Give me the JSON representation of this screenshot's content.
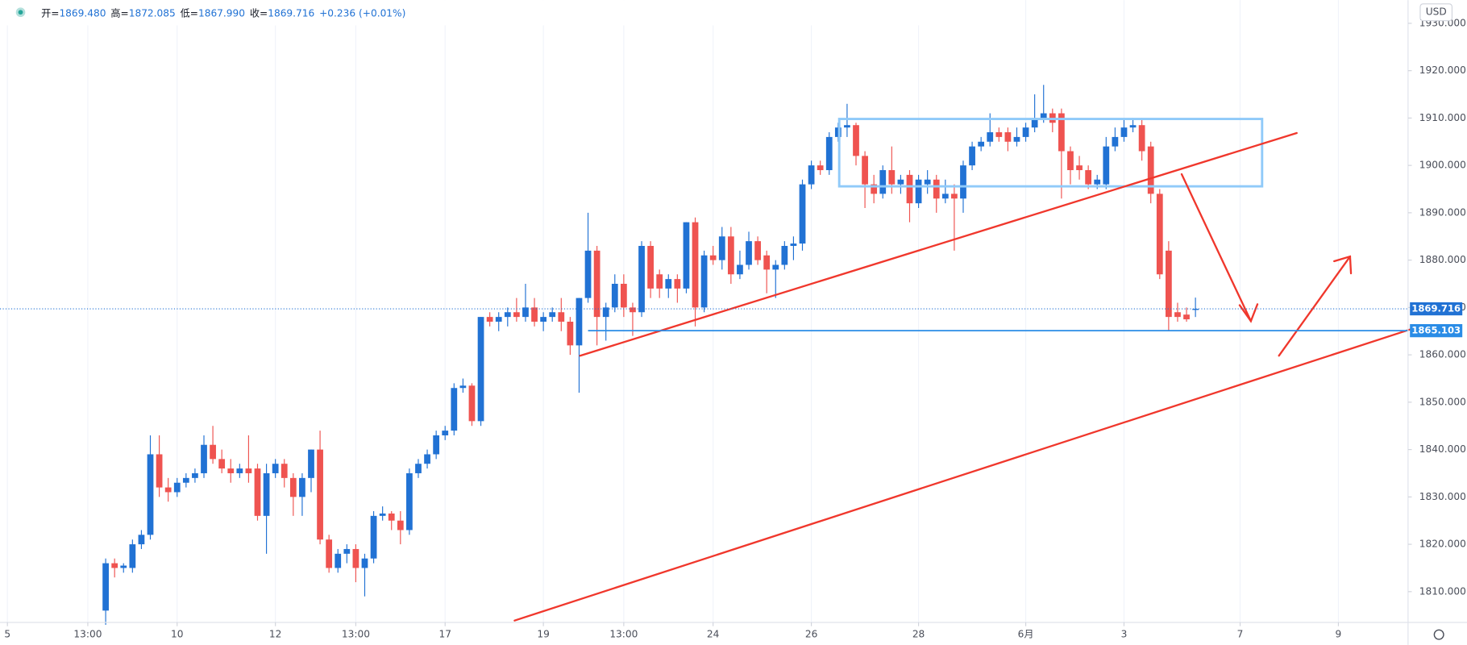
{
  "chart_data": {
    "type": "candlestick",
    "ohlc_header": [
      {
        "label": "开=",
        "value": "1869.480"
      },
      {
        "label": "高=",
        "value": "1872.085"
      },
      {
        "label": "低=",
        "value": "1867.990"
      },
      {
        "label": "收=",
        "value": "1869.716"
      }
    ],
    "change": "+0.236 (+0.01%)",
    "currency": "USD",
    "up_color": "#2172d4",
    "down_color": "#ef5350",
    "grid": true,
    "xlim": [
      -11.83,
      145.8
    ],
    "ylim": [
      1803.5,
      1934.9
    ],
    "xticks": [
      {
        "value": -11,
        "label": "5"
      },
      {
        "value": -2,
        "label": "13:00"
      },
      {
        "value": 8,
        "label": "10"
      },
      {
        "value": 19,
        "label": "12"
      },
      {
        "value": 28,
        "label": "13:00"
      },
      {
        "value": 38,
        "label": "17"
      },
      {
        "value": 49,
        "label": "19"
      },
      {
        "value": 58,
        "label": "13:00"
      },
      {
        "value": 68,
        "label": "24"
      },
      {
        "value": 79,
        "label": "26"
      },
      {
        "value": 91,
        "label": "28"
      },
      {
        "value": 103,
        "label": "6月"
      },
      {
        "value": 114,
        "label": "3"
      },
      {
        "value": 127,
        "label": "7"
      },
      {
        "value": 138,
        "label": "9"
      }
    ],
    "yticks": [
      {
        "value": 1810,
        "label": "1810.000"
      },
      {
        "value": 1820,
        "label": "1820.000"
      },
      {
        "value": 1830,
        "label": "1830.000"
      },
      {
        "value": 1840,
        "label": "1840.000"
      },
      {
        "value": 1850,
        "label": "1850.000"
      },
      {
        "value": 1860,
        "label": "1860.000"
      },
      {
        "value": 1870,
        "label": "1870.000"
      },
      {
        "value": 1880,
        "label": "1880.000"
      },
      {
        "value": 1890,
        "label": "1890.000"
      },
      {
        "value": 1900,
        "label": "1900.000"
      },
      {
        "value": 1910,
        "label": "1910.000"
      },
      {
        "value": 1920,
        "label": "1920.000"
      },
      {
        "value": 1930,
        "label": "1930.000"
      }
    ],
    "price_lines": [
      {
        "value": 1869.716,
        "color": "#2172d4",
        "style": "dotted",
        "from": 0
      },
      {
        "value": 1865.103,
        "color": "#2a8ce6",
        "style": "solid",
        "from": 54
      }
    ],
    "candles": [
      [
        1806,
        1817,
        1803,
        1816
      ],
      [
        1816,
        1817,
        1813,
        1815
      ],
      [
        1815,
        1816,
        1814,
        1815.5
      ],
      [
        1815,
        1821,
        1814,
        1820
      ],
      [
        1820,
        1823,
        1819,
        1822
      ],
      [
        1822,
        1843,
        1821,
        1839
      ],
      [
        1839,
        1843,
        1830,
        1832
      ],
      [
        1832,
        1834,
        1829,
        1831
      ],
      [
        1831,
        1834,
        1830,
        1833
      ],
      [
        1833,
        1835,
        1832,
        1834
      ],
      [
        1834,
        1836,
        1833,
        1835
      ],
      [
        1835,
        1843,
        1834,
        1841
      ],
      [
        1841,
        1845,
        1837,
        1838
      ],
      [
        1838,
        1840,
        1835,
        1836
      ],
      [
        1836,
        1838,
        1833,
        1835
      ],
      [
        1835,
        1837,
        1834,
        1836
      ],
      [
        1836,
        1843,
        1833,
        1835
      ],
      [
        1836,
        1837,
        1825,
        1826
      ],
      [
        1826,
        1837,
        1818,
        1835
      ],
      [
        1835,
        1838,
        1834,
        1837
      ],
      [
        1837,
        1838,
        1832,
        1834
      ],
      [
        1834,
        1835,
        1826,
        1830
      ],
      [
        1830,
        1835,
        1826,
        1834
      ],
      [
        1834,
        1840,
        1831,
        1840
      ],
      [
        1840,
        1844,
        1820,
        1821
      ],
      [
        1821,
        1822,
        1814,
        1815
      ],
      [
        1815,
        1819,
        1814,
        1818
      ],
      [
        1818,
        1820,
        1816,
        1819
      ],
      [
        1819,
        1820,
        1812,
        1815
      ],
      [
        1815,
        1818,
        1809,
        1817
      ],
      [
        1817,
        1827,
        1816,
        1826
      ],
      [
        1826,
        1828,
        1825,
        1826.5
      ],
      [
        1826.5,
        1827,
        1823,
        1825
      ],
      [
        1825,
        1827,
        1820,
        1823
      ],
      [
        1823,
        1836,
        1822,
        1835
      ],
      [
        1835,
        1838,
        1834,
        1837
      ],
      [
        1837,
        1840,
        1836,
        1839
      ],
      [
        1839,
        1844,
        1838,
        1843
      ],
      [
        1843,
        1845,
        1842,
        1844
      ],
      [
        1844,
        1854,
        1843,
        1853
      ],
      [
        1853,
        1855,
        1852,
        1853.5
      ],
      [
        1853.5,
        1854,
        1845,
        1846
      ],
      [
        1846,
        1868,
        1845,
        1868
      ],
      [
        1868,
        1869,
        1866,
        1867
      ],
      [
        1867,
        1869,
        1865,
        1868
      ],
      [
        1868,
        1870,
        1866,
        1869
      ],
      [
        1869,
        1872,
        1867,
        1868
      ],
      [
        1868,
        1875,
        1867,
        1870
      ],
      [
        1870,
        1872,
        1866,
        1867
      ],
      [
        1867,
        1869,
        1865,
        1868
      ],
      [
        1868,
        1870,
        1867,
        1869
      ],
      [
        1869,
        1872,
        1865,
        1867
      ],
      [
        1867,
        1868,
        1860,
        1862
      ],
      [
        1862,
        1872,
        1852,
        1872
      ],
      [
        1872,
        1890,
        1871,
        1882
      ],
      [
        1882,
        1883,
        1862,
        1868
      ],
      [
        1868,
        1871,
        1863,
        1870
      ],
      [
        1870,
        1877,
        1869,
        1875
      ],
      [
        1875,
        1877,
        1868,
        1870
      ],
      [
        1870,
        1871,
        1864,
        1869
      ],
      [
        1869,
        1884,
        1868,
        1883
      ],
      [
        1883,
        1884,
        1872,
        1874
      ],
      [
        1877,
        1878,
        1872,
        1874
      ],
      [
        1874,
        1877,
        1872,
        1876
      ],
      [
        1876,
        1877,
        1871,
        1874
      ],
      [
        1874,
        1888,
        1873,
        1888
      ],
      [
        1888,
        1889,
        1866,
        1870
      ],
      [
        1870,
        1882,
        1869,
        1881
      ],
      [
        1881,
        1883,
        1879,
        1880
      ],
      [
        1880,
        1887,
        1878,
        1885
      ],
      [
        1885,
        1887,
        1875,
        1877
      ],
      [
        1877,
        1882,
        1876,
        1879
      ],
      [
        1879,
        1886,
        1878,
        1884
      ],
      [
        1884,
        1885,
        1879,
        1880
      ],
      [
        1881,
        1882,
        1873,
        1878
      ],
      [
        1878,
        1880,
        1872,
        1879
      ],
      [
        1879,
        1884,
        1878,
        1883
      ],
      [
        1883,
        1885,
        1880,
        1883.5
      ],
      [
        1883.5,
        1897,
        1882,
        1896
      ],
      [
        1896,
        1901,
        1895,
        1900
      ],
      [
        1900,
        1901,
        1898,
        1899
      ],
      [
        1899,
        1907,
        1898,
        1906
      ],
      [
        1906,
        1909,
        1905,
        1908
      ],
      [
        1908,
        1913,
        1906,
        1908.5
      ],
      [
        1908.5,
        1909,
        1900,
        1902
      ],
      [
        1902,
        1903,
        1891,
        1896
      ],
      [
        1896,
        1898,
        1892,
        1894
      ],
      [
        1894,
        1900,
        1893,
        1899
      ],
      [
        1899,
        1904,
        1894,
        1896
      ],
      [
        1896,
        1898,
        1894,
        1897
      ],
      [
        1898,
        1899,
        1888,
        1892
      ],
      [
        1892,
        1898,
        1891,
        1897
      ],
      [
        1896,
        1899,
        1894,
        1897
      ],
      [
        1897,
        1898,
        1890,
        1893
      ],
      [
        1893,
        1897,
        1892,
        1894
      ],
      [
        1894,
        1896,
        1882,
        1893
      ],
      [
        1893,
        1901,
        1890,
        1900
      ],
      [
        1900,
        1905,
        1899,
        1904
      ],
      [
        1904,
        1906,
        1903,
        1905
      ],
      [
        1905,
        1911,
        1904,
        1907
      ],
      [
        1907,
        1908,
        1905,
        1906
      ],
      [
        1907,
        1908,
        1903,
        1905
      ],
      [
        1905,
        1908,
        1904,
        1906
      ],
      [
        1906,
        1909,
        1905,
        1908
      ],
      [
        1908,
        1915,
        1907,
        1910
      ],
      [
        1910,
        1917,
        1909,
        1911
      ],
      [
        1911,
        1912,
        1907,
        1909
      ],
      [
        1911,
        1912,
        1893,
        1903
      ],
      [
        1903,
        1904,
        1896,
        1899
      ],
      [
        1900,
        1902,
        1897,
        1899
      ],
      [
        1899,
        1900,
        1895,
        1896
      ],
      [
        1896,
        1898,
        1895,
        1897
      ],
      [
        1896,
        1906,
        1895,
        1904
      ],
      [
        1904,
        1908,
        1903,
        1906
      ],
      [
        1906,
        1910,
        1905,
        1908
      ],
      [
        1908,
        1910,
        1907,
        1908.5
      ],
      [
        1908.5,
        1910,
        1901,
        1903
      ],
      [
        1904,
        1905,
        1892,
        1894
      ],
      [
        1894,
        1895,
        1876,
        1877
      ],
      [
        1882,
        1884,
        1865,
        1868
      ],
      [
        1869,
        1871,
        1867,
        1868
      ],
      [
        1868.5,
        1870,
        1867,
        1867.5
      ],
      [
        1869.48,
        1872.085,
        1867.99,
        1869.716
      ]
    ]
  }
}
